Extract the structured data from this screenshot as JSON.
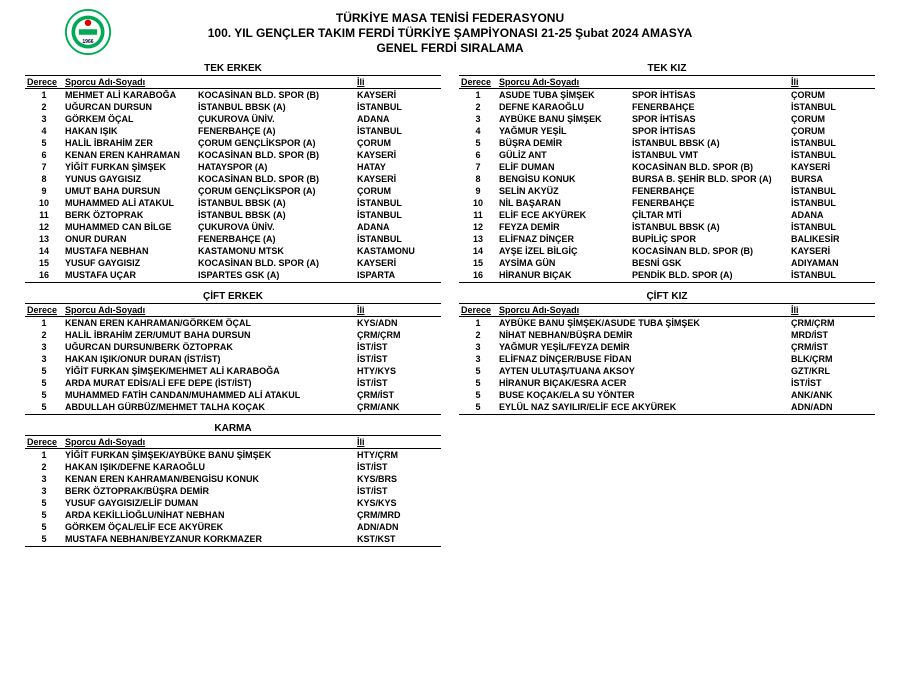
{
  "header": {
    "line1": "TÜRKİYE MASA TENİSİ FEDERASYONU",
    "line2": "100. YIL GENÇLER TAKIM FERDİ TÜRKİYE ŞAMPİYONASI  21-25 Şubat 2024 AMASYA",
    "line3": "GENEL FERDİ SIRALAMA"
  },
  "labels": {
    "derece": "Derece",
    "sporcu": "Sporcu Adı-Soyadı",
    "il": "İli"
  },
  "sections": {
    "tekErkek": "TEK ERKEK",
    "tekKiz": "TEK KIZ",
    "ciftErkek": "ÇİFT ERKEK",
    "ciftKiz": "ÇİFT KIZ",
    "karma": "KARMA"
  },
  "tekErkek": [
    {
      "r": "1",
      "n": "MEHMET ALİ KARABOĞA",
      "c": "KOCASİNAN BLD. SPOR (B)",
      "i": "KAYSERİ"
    },
    {
      "r": "2",
      "n": "UĞURCAN DURSUN",
      "c": "İSTANBUL BBSK (A)",
      "i": "İSTANBUL"
    },
    {
      "r": "3",
      "n": "GÖRKEM ÖÇAL",
      "c": "ÇUKUROVA ÜNİV.",
      "i": "ADANA"
    },
    {
      "r": "4",
      "n": "HAKAN IŞIK",
      "c": "FENERBAHÇE (A)",
      "i": "İSTANBUL"
    },
    {
      "r": "5",
      "n": "HALİL İBRAHİM ZER",
      "c": "ÇORUM GENÇLİKSPOR (A)",
      "i": "ÇORUM"
    },
    {
      "r": "6",
      "n": "KENAN EREN KAHRAMAN",
      "c": "KOCASİNAN BLD. SPOR (B)",
      "i": "KAYSERİ"
    },
    {
      "r": "7",
      "n": "YİĞİT FURKAN ŞİMŞEK",
      "c": "HATAYSPOR (A)",
      "i": "HATAY"
    },
    {
      "r": "8",
      "n": "YUNUS GAYGISIZ",
      "c": "KOCASİNAN BLD. SPOR (B)",
      "i": "KAYSERİ"
    },
    {
      "r": "9",
      "n": "UMUT BAHA DURSUN",
      "c": "ÇORUM GENÇLİKSPOR (A)",
      "i": "ÇORUM"
    },
    {
      "r": "10",
      "n": "MUHAMMED ALİ ATAKUL",
      "c": "İSTANBUL BBSK (A)",
      "i": "İSTANBUL"
    },
    {
      "r": "11",
      "n": "BERK ÖZTOPRAK",
      "c": "İSTANBUL BBSK (A)",
      "i": "İSTANBUL"
    },
    {
      "r": "12",
      "n": "MUHAMMED CAN BİLGE",
      "c": "ÇUKUROVA ÜNİV.",
      "i": "ADANA"
    },
    {
      "r": "13",
      "n": "ONUR DURAN",
      "c": "FENERBAHÇE (A)",
      "i": "İSTANBUL"
    },
    {
      "r": "14",
      "n": "MUSTAFA NEBHAN",
      "c": "KASTAMONU MTSK",
      "i": "KASTAMONU"
    },
    {
      "r": "15",
      "n": "YUSUF GAYGISIZ",
      "c": "KOCASİNAN BLD. SPOR (A)",
      "i": "KAYSERİ"
    },
    {
      "r": "16",
      "n": "MUSTAFA UÇAR",
      "c": "ISPARTES GSK (A)",
      "i": "ISPARTA"
    }
  ],
  "tekKiz": [
    {
      "r": "1",
      "n": "ASUDE TUBA ŞİMŞEK",
      "c": "SPOR İHTİSAS",
      "i": "ÇORUM"
    },
    {
      "r": "2",
      "n": "DEFNE KARAOĞLU",
      "c": "FENERBAHÇE",
      "i": "İSTANBUL"
    },
    {
      "r": "3",
      "n": "AYBÜKE BANU ŞİMŞEK",
      "c": "SPOR İHTİSAS",
      "i": "ÇORUM"
    },
    {
      "r": "4",
      "n": "YAĞMUR YEŞİL",
      "c": "SPOR İHTİSAS",
      "i": "ÇORUM"
    },
    {
      "r": "5",
      "n": "BÜŞRA DEMİR",
      "c": "İSTANBUL BBSK (A)",
      "i": "İSTANBUL"
    },
    {
      "r": "6",
      "n": "GÜLİZ ANT",
      "c": "İSTANBUL VMT",
      "i": "İSTANBUL"
    },
    {
      "r": "7",
      "n": "ELİF DUMAN",
      "c": "KOCASİNAN BLD. SPOR (B)",
      "i": "KAYSERİ"
    },
    {
      "r": "8",
      "n": "BENGİSU KONUK",
      "c": "BURSA B. ŞEHİR BLD. SPOR (A)",
      "i": "BURSA"
    },
    {
      "r": "9",
      "n": "SELİN AKYÜZ",
      "c": "FENERBAHÇE",
      "i": "İSTANBUL"
    },
    {
      "r": "10",
      "n": "NİL BAŞARAN",
      "c": "FENERBAHÇE",
      "i": "İSTANBUL"
    },
    {
      "r": "11",
      "n": "ELİF ECE AKYÜREK",
      "c": "ÇİLTAR MTİ",
      "i": "ADANA"
    },
    {
      "r": "12",
      "n": "FEYZA DEMİR",
      "c": "İSTANBUL BBSK (A)",
      "i": "İSTANBUL"
    },
    {
      "r": "13",
      "n": "ELİFNAZ DİNÇER",
      "c": "BUPİLİÇ SPOR",
      "i": "BALIKESİR"
    },
    {
      "r": "14",
      "n": "AYŞE İZEL BİLGİÇ",
      "c": "KOCASİNAN BLD. SPOR (B)",
      "i": "KAYSERİ"
    },
    {
      "r": "15",
      "n": "AYSİMA GÜN",
      "c": "BESNİ GSK",
      "i": "ADIYAMAN"
    },
    {
      "r": "16",
      "n": "HİRANUR BIÇAK",
      "c": "PENDİK BLD. SPOR (A)",
      "i": "İSTANBUL"
    }
  ],
  "ciftErkek": [
    {
      "r": "1",
      "n": "KENAN EREN KAHRAMAN/GÖRKEM ÖÇAL",
      "i": "KYS/ADN"
    },
    {
      "r": "2",
      "n": "HALİL İBRAHİM ZER/UMUT BAHA DURSUN",
      "i": "ÇRM/ÇRM"
    },
    {
      "r": "3",
      "n": "UĞURCAN DURSUN/BERK ÖZTOPRAK",
      "i": "İST/İST"
    },
    {
      "r": "3",
      "n": "HAKAN IŞIK/ONUR DURAN (İST/İST)",
      "i": "İST/İST"
    },
    {
      "r": "5",
      "n": "YİĞİT FURKAN ŞİMŞEK/MEHMET ALİ KARABOĞA",
      "i": "HTY/KYS"
    },
    {
      "r": "5",
      "n": "ARDA MURAT EDİS/ALİ EFE DEPE (İST/İST)",
      "i": "İST/İST"
    },
    {
      "r": "5",
      "n": "MUHAMMED FATİH CANDAN/MUHAMMED ALİ ATAKUL",
      "i": "ÇRM/İST"
    },
    {
      "r": "5",
      "n": "ABDULLAH GÜRBÜZ/MEHMET TALHA KOÇAK",
      "i": "ÇRM/ANK"
    }
  ],
  "ciftKiz": [
    {
      "r": "1",
      "n": "AYBÜKE BANU ŞİMŞEK/ASUDE TUBA ŞİMŞEK",
      "i": "ÇRM/ÇRM"
    },
    {
      "r": "2",
      "n": "NİHAT NEBHAN/BÜŞRA DEMİR",
      "i": "MRD/İST"
    },
    {
      "r": "3",
      "n": "YAĞMUR YEŞİL/FEYZA DEMİR",
      "i": "ÇRM/İST"
    },
    {
      "r": "3",
      "n": "ELİFNAZ DİNÇER/BUSE FİDAN",
      "i": "BLK/ÇRM"
    },
    {
      "r": "5",
      "n": "AYTEN ULUTAŞ/TUANA AKSOY",
      "i": "GZT/KRL"
    },
    {
      "r": "5",
      "n": "HİRANUR BIÇAK/ESRA ACER",
      "i": "İST/İST"
    },
    {
      "r": "5",
      "n": "BUSE KOÇAK/ELA SU YÖNTER",
      "i": "ANK/ANK"
    },
    {
      "r": "5",
      "n": "EYLÜL NAZ SAYILIR/ELİF ECE AKYÜREK",
      "i": "ADN/ADN"
    }
  ],
  "karma": [
    {
      "r": "1",
      "n": "YİĞİT FURKAN ŞİMŞEK/AYBÜKE BANU ŞİMŞEK",
      "i": "HTY/ÇRM"
    },
    {
      "r": "2",
      "n": "HAKAN IŞIK/DEFNE KARAOĞLU",
      "i": "İST/İST"
    },
    {
      "r": "3",
      "n": "KENAN EREN KAHRAMAN/BENGİSU KONUK",
      "i": "KYS/BRS"
    },
    {
      "r": "3",
      "n": "BERK ÖZTOPRAK/BÜŞRA DEMİR",
      "i": "İST/İST"
    },
    {
      "r": "5",
      "n": "YUSUF GAYGISIZ/ELİF DUMAN",
      "i": "KYS/KYS"
    },
    {
      "r": "5",
      "n": "ARDA KEKİLLİOĞLU/NİHAT NEBHAN",
      "i": "ÇRM/MRD"
    },
    {
      "r": "5",
      "n": "GÖRKEM ÖÇAL/ELİF ECE AKYÜREK",
      "i": "ADN/ADN"
    },
    {
      "r": "5",
      "n": "MUSTAFA NEBHAN/BEYZANUR KORKMAZER",
      "i": "KST/KST"
    }
  ]
}
